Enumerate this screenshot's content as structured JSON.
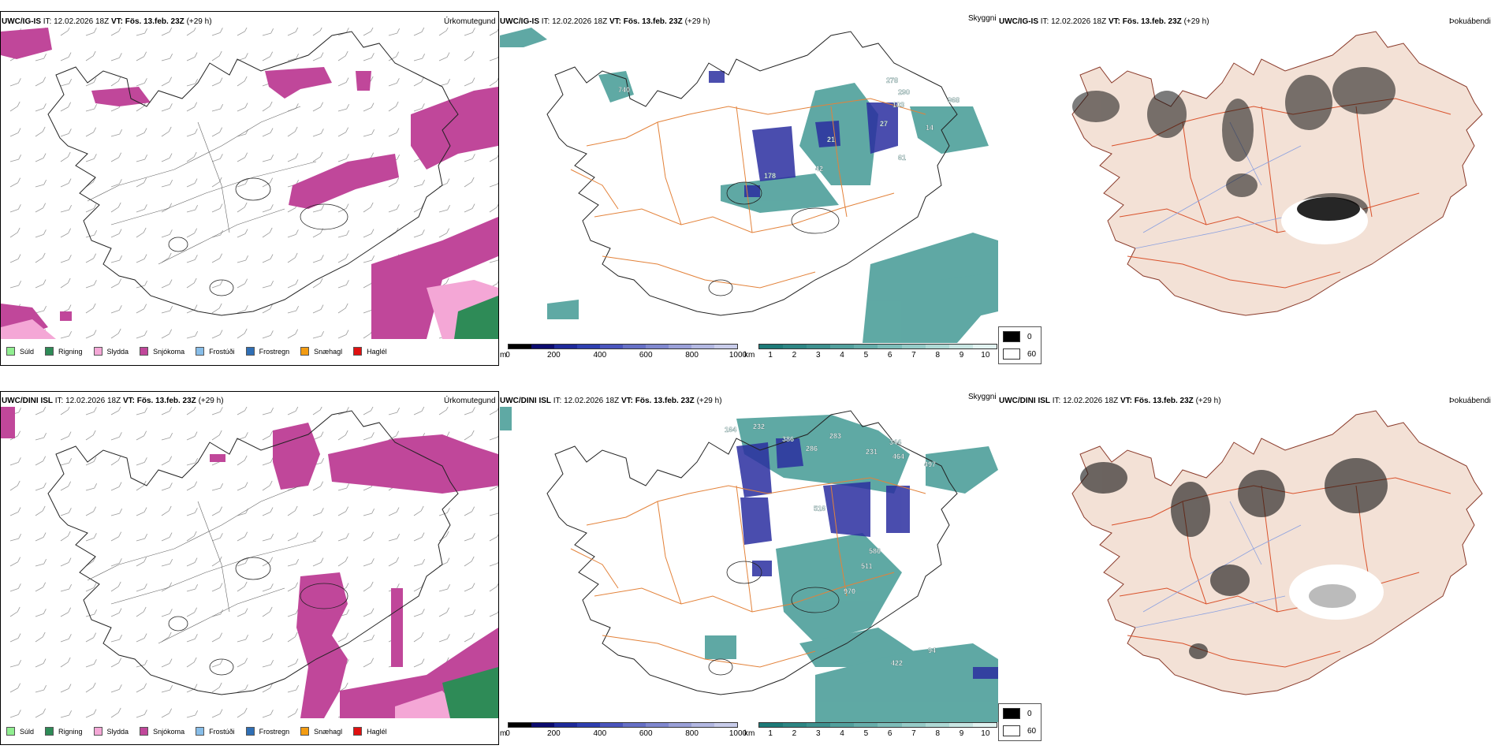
{
  "rows": [
    {
      "model": "UWC/IG-IS",
      "it_label": "IT:",
      "it_value": "12.02.2026 18Z",
      "vt_label": "VT:",
      "vt_value": "Fös. 13.feb. 23Z",
      "lead": "(+29 h)"
    },
    {
      "model": "UWC/DINI ISL",
      "it_label": "IT:",
      "it_value": "12.02.2026 18Z",
      "vt_label": "VT:",
      "vt_value": "Fös. 13.feb. 23Z",
      "lead": "(+29 h)"
    }
  ],
  "panel_titles": {
    "precip_type": "Úrkomutegund",
    "visibility": "Skyggni",
    "fog": "Þokuábendi"
  },
  "precip_legend": [
    {
      "label": "Súld",
      "color": "#90ee90"
    },
    {
      "label": "Rigning",
      "color": "#2e8b57"
    },
    {
      "label": "Slydda",
      "color": "#f4a7d6"
    },
    {
      "label": "Snjókoma",
      "color": "#c0479a"
    },
    {
      "label": "Frostúði",
      "color": "#87bde8"
    },
    {
      "label": "Frostregn",
      "color": "#2f6fb5"
    },
    {
      "label": "Snæhagl",
      "color": "#f39c12"
    },
    {
      "label": "Haglél",
      "color": "#e01010"
    }
  ],
  "visibility_scale_m": {
    "unit": "m",
    "ticks": [
      "0",
      "200",
      "400",
      "600",
      "800",
      "1000"
    ],
    "colors": [
      "#000000",
      "#0b0b6e",
      "#1e2a9a",
      "#2e3fb0",
      "#4a55bd",
      "#6670c6",
      "#8088cf",
      "#9aa0d8",
      "#b3b8e2",
      "#c8ccea"
    ]
  },
  "visibility_scale_km": {
    "unit": "km",
    "ticks": [
      "1",
      "2",
      "3",
      "4",
      "5",
      "6",
      "7",
      "8",
      "9",
      "10"
    ],
    "colors": [
      "#1d7a78",
      "#2d8684",
      "#3d918f",
      "#51a09d",
      "#66aeab",
      "#7dbdb9",
      "#95cbc7",
      "#aed9d5",
      "#c8e6e3",
      "#e2f3f1"
    ]
  },
  "fog_legend": {
    "low": "0",
    "high": "60"
  },
  "visibility_labels": [
    [
      "740",
      "290",
      "968",
      "103",
      "278",
      "27",
      "14",
      "21",
      "178",
      "42",
      "61"
    ],
    [
      "164",
      "232",
      "386",
      "283",
      "231",
      "344",
      "464",
      "497",
      "286",
      "516",
      "586",
      "511",
      "970",
      "422",
      "94"
    ]
  ],
  "colors": {
    "snow": "#c0479a",
    "sleet": "#f4a7d6",
    "rain": "#2e8b57",
    "teal": "#2a8c86",
    "blue": "#2b2fa0",
    "road": "#e3823a",
    "land_fog": "#f3e1d6"
  }
}
